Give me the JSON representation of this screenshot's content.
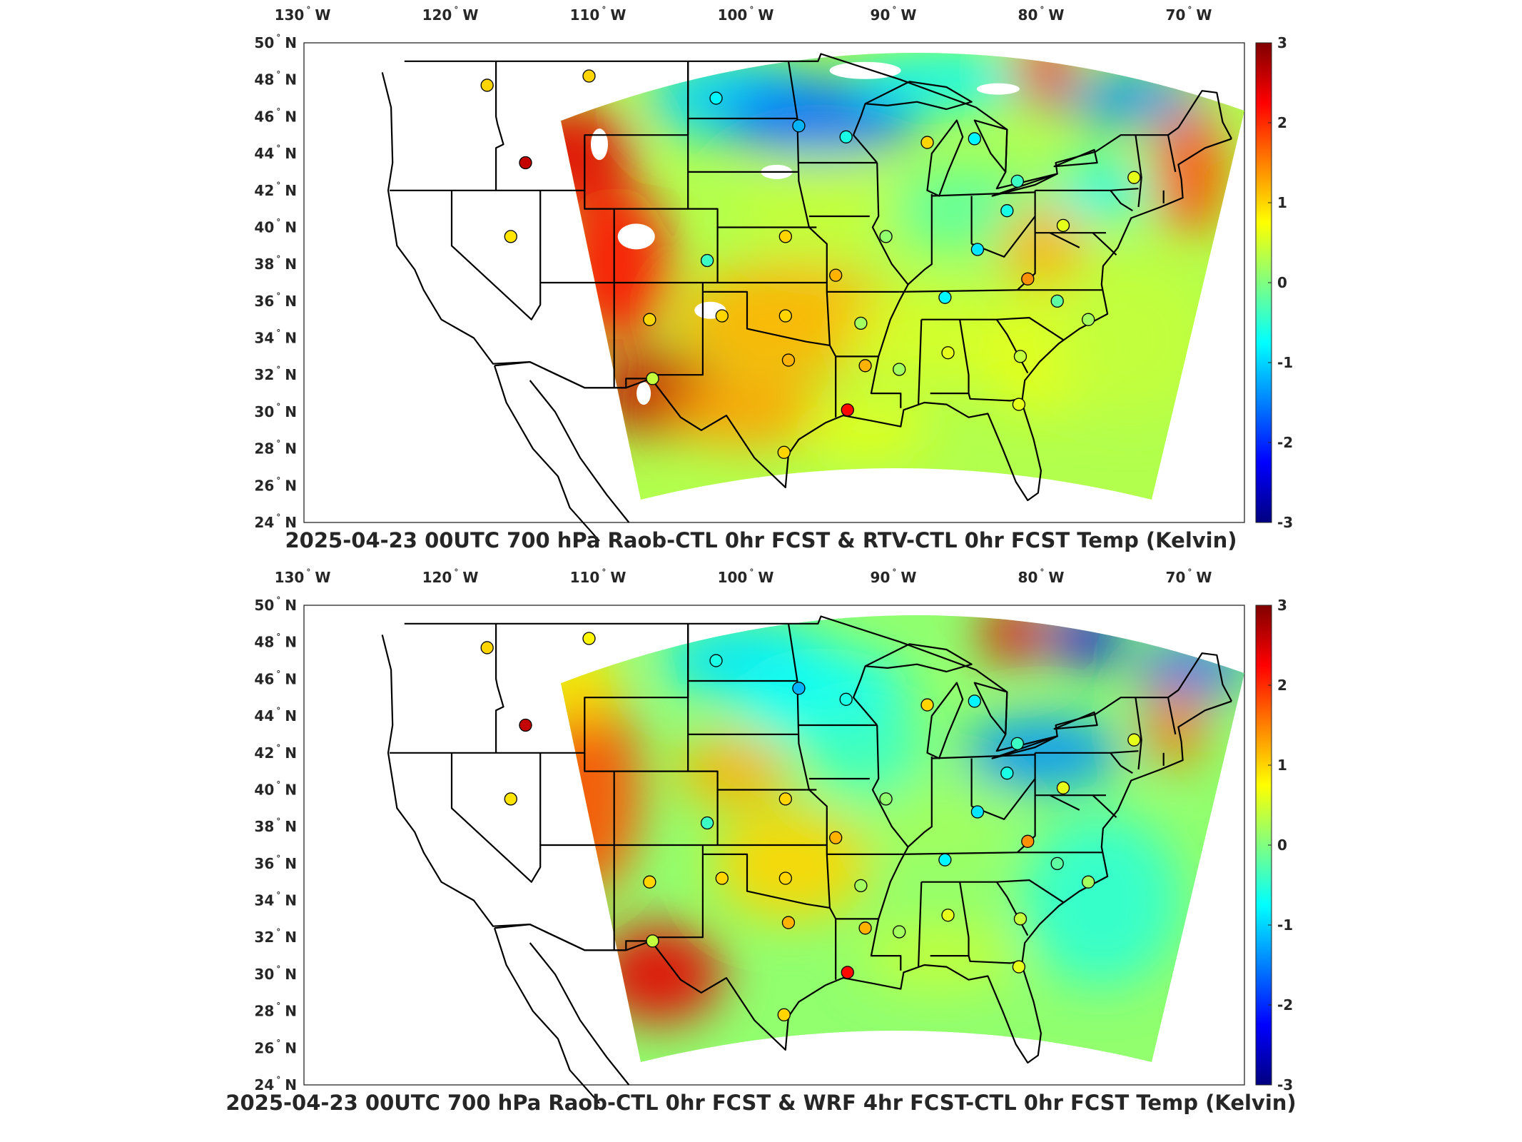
{
  "panels": [
    {
      "title": "2025-04-23 00UTC 700 hPa Raob-CTL 0hr FCST & RTV-CTL 0hr FCST Temp (Kelvin)",
      "scheme": "rtv"
    },
    {
      "title": "2025-04-23 00UTC 700 hPa Raob-CTL 0hr FCST & WRF 4hr FCST-CTL 0hr FCST Temp (Kelvin)",
      "scheme": "wrf"
    }
  ],
  "lon_labels": [
    {
      "v": 130,
      "h": "W"
    },
    {
      "v": 120,
      "h": "W"
    },
    {
      "v": 110,
      "h": "W"
    },
    {
      "v": 100,
      "h": "W"
    },
    {
      "v": 90,
      "h": "W"
    },
    {
      "v": 80,
      "h": "W"
    },
    {
      "v": 70,
      "h": "W"
    }
  ],
  "lat_labels": [
    {
      "v": 50,
      "h": "N"
    },
    {
      "v": 48,
      "h": "N"
    },
    {
      "v": 46,
      "h": "N"
    },
    {
      "v": 44,
      "h": "N"
    },
    {
      "v": 42,
      "h": "N"
    },
    {
      "v": 40,
      "h": "N"
    },
    {
      "v": 38,
      "h": "N"
    },
    {
      "v": 36,
      "h": "N"
    },
    {
      "v": 34,
      "h": "N"
    },
    {
      "v": 32,
      "h": "N"
    },
    {
      "v": 30,
      "h": "N"
    },
    {
      "v": 28,
      "h": "N"
    },
    {
      "v": 26,
      "h": "N"
    },
    {
      "v": 24,
      "h": "N"
    }
  ],
  "colorbar": {
    "ticks": [
      3,
      2,
      1,
      0,
      -1,
      -2,
      -3
    ],
    "min": -3,
    "max": 3,
    "colormap": "jet"
  },
  "raob_stations": [
    {
      "lon": -117.6,
      "lat": 47.7,
      "v1": 1.0,
      "v2": 1.0
    },
    {
      "lon": -110.7,
      "lat": 48.2,
      "v1": 1.0,
      "v2": 0.8
    },
    {
      "lon": -102.1,
      "lat": 47.0,
      "v1": -0.8,
      "v2": -0.6
    },
    {
      "lon": -96.5,
      "lat": 45.5,
      "v1": -1.2,
      "v2": -1.2
    },
    {
      "lon": -93.3,
      "lat": 44.9,
      "v1": -0.6,
      "v2": -0.6
    },
    {
      "lon": -87.8,
      "lat": 44.6,
      "v1": 1.0,
      "v2": 1.0
    },
    {
      "lon": -84.6,
      "lat": 44.8,
      "v1": -0.8,
      "v2": -0.8
    },
    {
      "lon": -81.7,
      "lat": 42.5,
      "v1": -0.4,
      "v2": -0.4
    },
    {
      "lon": -73.8,
      "lat": 42.7,
      "v1": 0.6,
      "v2": 0.6
    },
    {
      "lon": -115.0,
      "lat": 43.5,
      "v1": 2.6,
      "v2": 2.6
    },
    {
      "lon": -116.0,
      "lat": 39.5,
      "v1": 0.9,
      "v2": 0.9
    },
    {
      "lon": -102.7,
      "lat": 38.2,
      "v1": -0.4,
      "v2": -0.4
    },
    {
      "lon": -97.4,
      "lat": 39.5,
      "v1": 1.0,
      "v2": 1.0
    },
    {
      "lon": -90.6,
      "lat": 39.5,
      "v1": 0.1,
      "v2": 0.1
    },
    {
      "lon": -84.4,
      "lat": 38.8,
      "v1": -0.9,
      "v2": -0.9
    },
    {
      "lon": -82.4,
      "lat": 40.9,
      "v1": -0.6,
      "v2": -0.6
    },
    {
      "lon": -78.6,
      "lat": 40.1,
      "v1": 0.6,
      "v2": 0.6
    },
    {
      "lon": -94.0,
      "lat": 37.4,
      "v1": 1.2,
      "v2": 1.2
    },
    {
      "lon": -81.0,
      "lat": 37.2,
      "v1": 1.4,
      "v2": 1.4
    },
    {
      "lon": -86.6,
      "lat": 36.2,
      "v1": -0.8,
      "v2": -0.8
    },
    {
      "lon": -79.0,
      "lat": 36.0,
      "v1": -0.2,
      "v2": -0.2
    },
    {
      "lon": -106.6,
      "lat": 35.0,
      "v1": 1.0,
      "v2": 1.0
    },
    {
      "lon": -101.7,
      "lat": 35.2,
      "v1": 1.0,
      "v2": 1.0
    },
    {
      "lon": -97.4,
      "lat": 35.2,
      "v1": 1.0,
      "v2": 1.0
    },
    {
      "lon": -92.3,
      "lat": 34.8,
      "v1": 0.2,
      "v2": 0.2
    },
    {
      "lon": -76.9,
      "lat": 35.0,
      "v1": 0.2,
      "v2": 0.2
    },
    {
      "lon": -97.2,
      "lat": 32.8,
      "v1": 1.2,
      "v2": 1.2
    },
    {
      "lon": -92.0,
      "lat": 32.5,
      "v1": 1.2,
      "v2": 1.2
    },
    {
      "lon": -89.7,
      "lat": 32.3,
      "v1": 0.2,
      "v2": 0.2
    },
    {
      "lon": -86.4,
      "lat": 33.2,
      "v1": 0.6,
      "v2": 0.6
    },
    {
      "lon": -81.5,
      "lat": 33.0,
      "v1": 0.4,
      "v2": 0.4
    },
    {
      "lon": -106.4,
      "lat": 31.8,
      "v1": 0.4,
      "v2": 0.4
    },
    {
      "lon": -93.2,
      "lat": 30.1,
      "v1": 2.2,
      "v2": 2.2
    },
    {
      "lon": -81.6,
      "lat": 30.4,
      "v1": 0.6,
      "v2": 0.6
    },
    {
      "lon": -97.5,
      "lat": 27.8,
      "v1": 1.0,
      "v2": 1.0
    }
  ]
}
